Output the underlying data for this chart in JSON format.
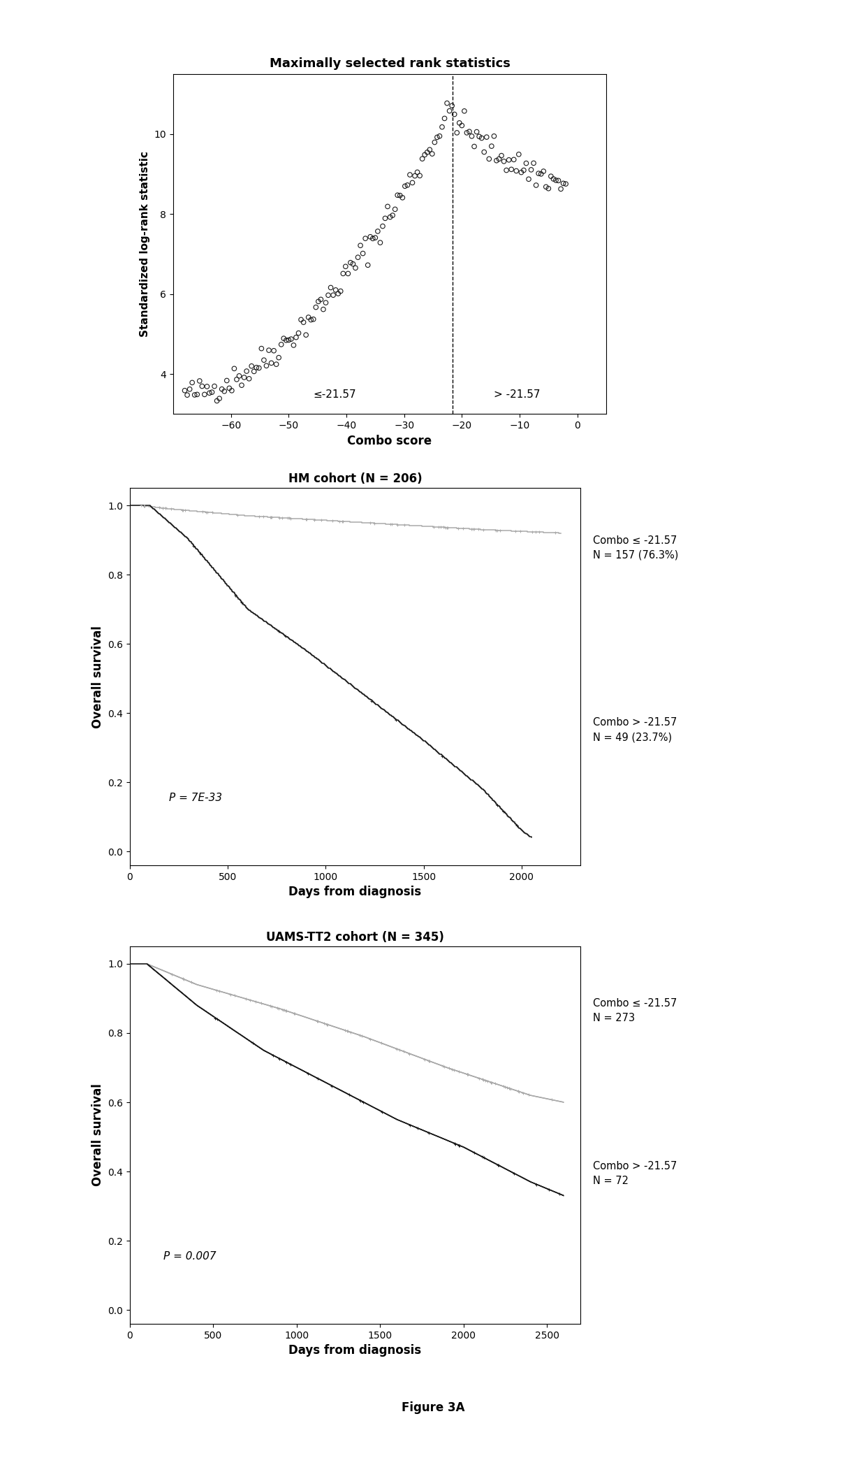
{
  "plot1_title": "Maximally selected rank statistics",
  "plot1_xlabel": "Combo score",
  "plot1_ylabel": "Standardized log-rank statistic",
  "plot1_xlim": [
    -70,
    5
  ],
  "plot1_ylim": [
    3.0,
    11.5
  ],
  "plot1_xticks": [
    -60,
    -50,
    -40,
    -30,
    -20,
    -10,
    0
  ],
  "plot1_yticks": [
    4,
    6,
    8,
    10
  ],
  "plot1_vline": -21.57,
  "plot1_label_left": "≤-21.57",
  "plot1_label_right": "> -21.57",
  "plot2_title": "HM cohort (N = 206)",
  "plot2_xlabel": "Days from diagnosis",
  "plot2_ylabel": "Overall survival",
  "plot2_xlim": [
    0,
    2300
  ],
  "plot2_ylim": [
    -0.04,
    1.05
  ],
  "plot2_xticks": [
    0,
    500,
    1000,
    1500,
    2000
  ],
  "plot2_yticks": [
    0.0,
    0.2,
    0.4,
    0.6,
    0.8,
    1.0
  ],
  "plot2_pvalue": "P = 7E-33",
  "plot2_label1": "Combo ≤ -21.57\nN = 157 (76.3%)",
  "plot2_label2": "Combo > -21.57\nN = 49 (23.7%)",
  "plot3_title": "UAMS-TT2 cohort (N = 345)",
  "plot3_xlabel": "Days from diagnosis",
  "plot3_ylabel": "Overall survival",
  "plot3_xlim": [
    0,
    2700
  ],
  "plot3_ylim": [
    -0.04,
    1.05
  ],
  "plot3_xticks": [
    0,
    500,
    1000,
    1500,
    2000,
    2500
  ],
  "plot3_yticks": [
    0.0,
    0.2,
    0.4,
    0.6,
    0.8,
    1.0
  ],
  "plot3_pvalue": "P = 0.007",
  "plot3_label1": "Combo ≤ -21.57\nN = 273",
  "plot3_label2": "Combo > -21.57\nN = 72",
  "color_dark": "#1a1a1a",
  "color_gray": "#aaaaaa",
  "figure_caption": "Figure 3A"
}
